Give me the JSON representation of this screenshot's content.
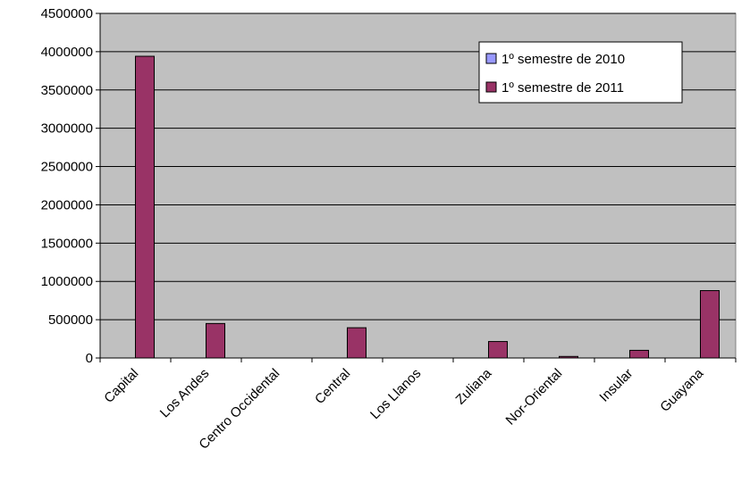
{
  "chart_data": {
    "type": "bar",
    "categories": [
      "Capital",
      "Los Andes",
      "Centro Occidental",
      "Central",
      "Los Llanos",
      "Zuliana",
      "Nor-Oriental",
      "Insular",
      "Guayana"
    ],
    "series": [
      {
        "name": "1º semestre de 2010",
        "values": [
          0,
          0,
          0,
          0,
          0,
          0,
          0,
          0,
          0
        ],
        "color": "#9999ff"
      },
      {
        "name": "1º semestre de 2011",
        "values": [
          3940000,
          450000,
          0,
          395000,
          0,
          215000,
          20000,
          100000,
          880000
        ],
        "color": "#993366"
      }
    ],
    "ylim": [
      0,
      4500000
    ],
    "yticks": [
      "0",
      "500000",
      "1000000",
      "1500000",
      "2000000",
      "2500000",
      "3000000",
      "3500000",
      "4000000",
      "4500000"
    ],
    "ytick_values": [
      0,
      500000,
      1000000,
      1500000,
      2000000,
      2500000,
      3000000,
      3500000,
      4000000,
      4500000
    ],
    "grid": true,
    "plot_background": "#c0c0c0",
    "legend_position": "top-right"
  }
}
